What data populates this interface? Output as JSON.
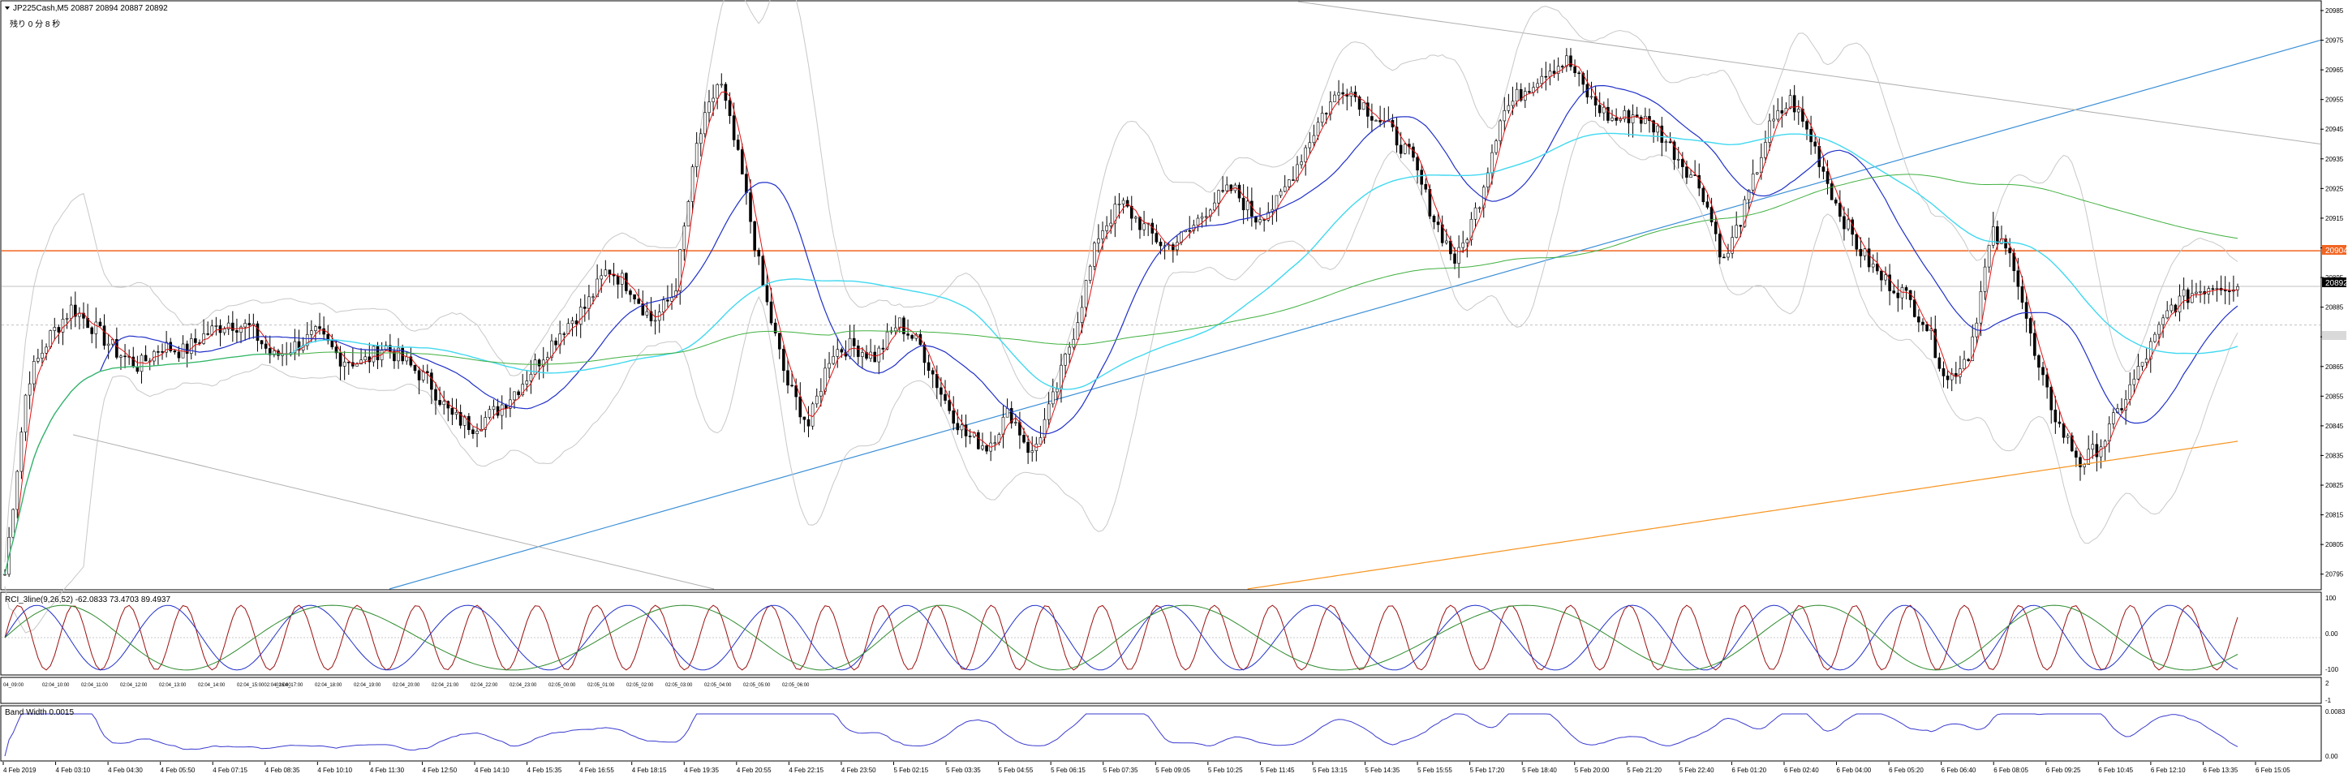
{
  "header": {
    "symbol_line": "JP225Cash,M5  20887 20894 20887 20892",
    "countdown": "残り 0 分 8 秒"
  },
  "price_axis": {
    "ticks": [
      "20985",
      "20975",
      "20965",
      "20955",
      "20945",
      "20935",
      "20925",
      "20915",
      "20905",
      "20895",
      "20885",
      "20875",
      "20865",
      "20855",
      "20845",
      "20835",
      "20825",
      "20815",
      "20805",
      "20795"
    ],
    "bid_label": "20904",
    "current_label": "20892",
    "range": [
      20790,
      20988
    ]
  },
  "colors": {
    "bid_line": "#f26522",
    "candles": "#000000",
    "ma_fast": "#e01010",
    "ma_blue": "#2030c8",
    "ma_cyan": "#40d8f0",
    "ma_green": "#40b040",
    "ma_orange": "#f7931e",
    "bands": "#c8c8c8",
    "trend_up": "#3b8fd6",
    "trend_down": "#b0b0b0",
    "rci_short": "#9b1010",
    "rci_mid": "#2030c8",
    "rci_long": "#2e8b2e",
    "bandwidth": "#3a3ad0"
  },
  "rci": {
    "label": "RCI_3line(9,26,52) -62.0833 73.4703 89.4937",
    "ticks": [
      "100",
      "0.00",
      "-100"
    ]
  },
  "mini": {
    "ticks": [
      "2",
      "-1"
    ],
    "time_labels": [
      "04_09:00",
      "02:04_10:00",
      "02:04_11:00",
      "02:04_12:00",
      "02:04_13:00",
      "02:04_14:00",
      "02:04_15:0002:04_16:00",
      "02:04_17:00",
      "02:04_18:00",
      "02:04_19:00",
      "02:04_20:00",
      "02:04_21:00",
      "02:04_22:00",
      "02:04_23:00",
      "02:05_00:00",
      "02:05_01:00",
      "02:05_02:00",
      "02:05_03:00",
      "02:05_04:00",
      "02:05_05:00",
      "02:05_06:00"
    ]
  },
  "bandwidth": {
    "label": "Band Width 0.0015",
    "ticks": [
      "0.0083",
      "0.00"
    ]
  },
  "time_axis": [
    "4 Feb 2019",
    "4 Feb 03:10",
    "4 Feb 04:30",
    "4 Feb 05:50",
    "4 Feb 07:15",
    "4 Feb 08:35",
    "4 Feb 10:10",
    "4 Feb 11:30",
    "4 Feb 12:50",
    "4 Feb 14:10",
    "4 Feb 15:35",
    "4 Feb 16:55",
    "4 Feb 18:15",
    "4 Feb 19:35",
    "4 Feb 20:55",
    "4 Feb 22:15",
    "4 Feb 23:50",
    "5 Feb 02:15",
    "5 Feb 03:35",
    "5 Feb 04:55",
    "5 Feb 06:15",
    "5 Feb 07:35",
    "5 Feb 09:05",
    "5 Feb 10:25",
    "5 Feb 11:45",
    "5 Feb 13:15",
    "5 Feb 14:35",
    "5 Feb 15:55",
    "5 Feb 17:20",
    "5 Feb 18:40",
    "5 Feb 20:00",
    "5 Feb 21:20",
    "5 Feb 22:40",
    "6 Feb 01:20",
    "6 Feb 02:40",
    "6 Feb 04:00",
    "6 Feb 05:20",
    "6 Feb 06:40",
    "6 Feb 08:05",
    "6 Feb 09:25",
    "6 Feb 10:45",
    "6 Feb 12:10",
    "6 Feb 13:35",
    "6 Feb 15:05"
  ],
  "chart_data": {
    "type": "candlestick",
    "price_points": [
      20795,
      20860,
      20875,
      20885,
      20878,
      20870,
      20865,
      20872,
      20870,
      20876,
      20880,
      20878,
      20868,
      20872,
      20876,
      20868,
      20866,
      20872,
      20866,
      20860,
      20848,
      20845,
      20850,
      20858,
      20868,
      20878,
      20885,
      20898,
      20892,
      20880,
      20890,
      20940,
      20962,
      20930,
      20890,
      20860,
      20845,
      20870,
      20872,
      20868,
      20880,
      20872,
      20855,
      20842,
      20838,
      20850,
      20835,
      20855,
      20880,
      20910,
      20920,
      20912,
      20905,
      20910,
      20920,
      20925,
      20915,
      20920,
      20935,
      20950,
      20960,
      20952,
      20945,
      20935,
      20915,
      20900,
      20920,
      20950,
      20958,
      20965,
      20968,
      20955,
      20948,
      20950,
      20945,
      20935,
      20925,
      20900,
      20920,
      20945,
      20955,
      20940,
      20920,
      20905,
      20895,
      20890,
      20880,
      20860,
      20870,
      20910,
      20900,
      20865,
      20845,
      20832,
      20840,
      20855,
      20870,
      20885,
      20890,
      20893,
      20892
    ]
  }
}
